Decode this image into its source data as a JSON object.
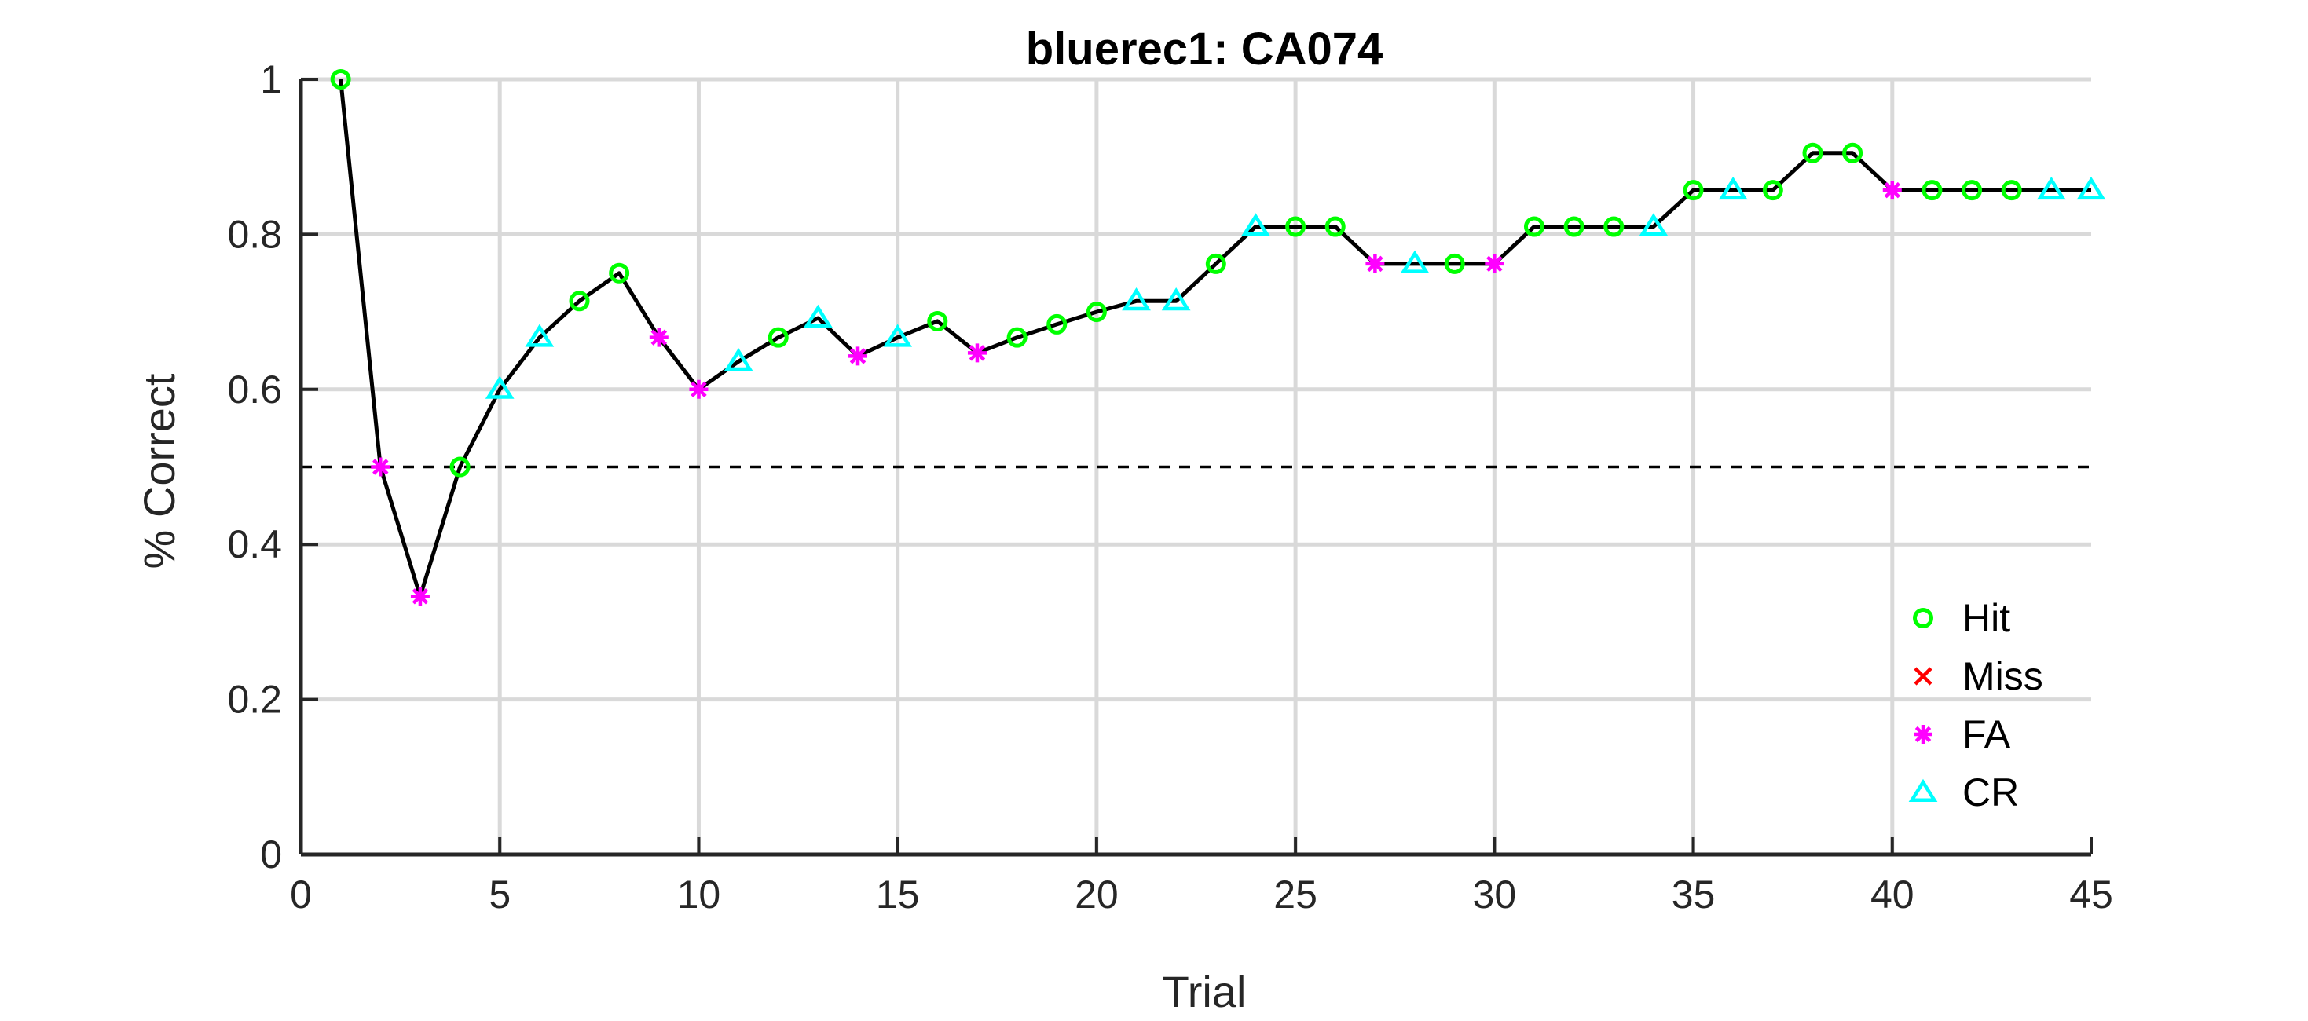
{
  "chart_data": {
    "type": "line",
    "title": "bluerec1: CA074",
    "xlabel": "Trial",
    "ylabel": "% Correct",
    "xlim": [
      0,
      45
    ],
    "ylim": [
      0,
      1
    ],
    "xticks": [
      0,
      5,
      10,
      15,
      20,
      25,
      30,
      35,
      40,
      45
    ],
    "yticks": [
      0,
      0.2,
      0.4,
      0.6,
      0.8,
      1
    ],
    "xtick_labels": [
      "0",
      "5",
      "10",
      "15",
      "20",
      "25",
      "30",
      "35",
      "40",
      "45"
    ],
    "ytick_labels": [
      "0",
      "0.2",
      "0.4",
      "0.6",
      "0.8",
      "1"
    ],
    "grid": true,
    "reference_line": {
      "y": 0.5,
      "style": "dashed"
    },
    "legend_position": "bottom-right",
    "legend": [
      {
        "label": "Hit",
        "marker": "circle",
        "color": "#00ff00"
      },
      {
        "label": "Miss",
        "marker": "x",
        "color": "#ff0000"
      },
      {
        "label": "FA",
        "marker": "asterisk",
        "color": "#ff00ff"
      },
      {
        "label": "CR",
        "marker": "triangle",
        "color": "#00ffff"
      }
    ],
    "line_color": "#000000",
    "points": [
      {
        "x": 1,
        "y": 1.0,
        "type": "Hit"
      },
      {
        "x": 2,
        "y": 0.5,
        "type": "FA"
      },
      {
        "x": 3,
        "y": 0.333,
        "type": "FA"
      },
      {
        "x": 4,
        "y": 0.5,
        "type": "Hit"
      },
      {
        "x": 5,
        "y": 0.6,
        "type": "CR"
      },
      {
        "x": 6,
        "y": 0.667,
        "type": "CR"
      },
      {
        "x": 7,
        "y": 0.714,
        "type": "Hit"
      },
      {
        "x": 8,
        "y": 0.75,
        "type": "Hit"
      },
      {
        "x": 9,
        "y": 0.667,
        "type": "FA"
      },
      {
        "x": 10,
        "y": 0.6,
        "type": "FA"
      },
      {
        "x": 11,
        "y": 0.636,
        "type": "CR"
      },
      {
        "x": 12,
        "y": 0.667,
        "type": "Hit"
      },
      {
        "x": 13,
        "y": 0.692,
        "type": "CR"
      },
      {
        "x": 14,
        "y": 0.643,
        "type": "FA"
      },
      {
        "x": 15,
        "y": 0.667,
        "type": "CR"
      },
      {
        "x": 16,
        "y": 0.688,
        "type": "Hit"
      },
      {
        "x": 17,
        "y": 0.647,
        "type": "FA"
      },
      {
        "x": 18,
        "y": 0.667,
        "type": "Hit"
      },
      {
        "x": 19,
        "y": 0.684,
        "type": "Hit"
      },
      {
        "x": 20,
        "y": 0.7,
        "type": "Hit"
      },
      {
        "x": 21,
        "y": 0.714,
        "type": "CR"
      },
      {
        "x": 22,
        "y": 0.714,
        "type": "CR"
      },
      {
        "x": 23,
        "y": 0.762,
        "type": "Hit"
      },
      {
        "x": 24,
        "y": 0.81,
        "type": "CR"
      },
      {
        "x": 25,
        "y": 0.81,
        "type": "Hit"
      },
      {
        "x": 26,
        "y": 0.81,
        "type": "Hit"
      },
      {
        "x": 27,
        "y": 0.762,
        "type": "FA"
      },
      {
        "x": 28,
        "y": 0.762,
        "type": "CR"
      },
      {
        "x": 29,
        "y": 0.762,
        "type": "Hit"
      },
      {
        "x": 30,
        "y": 0.762,
        "type": "FA"
      },
      {
        "x": 31,
        "y": 0.81,
        "type": "Hit"
      },
      {
        "x": 32,
        "y": 0.81,
        "type": "Hit"
      },
      {
        "x": 33,
        "y": 0.81,
        "type": "Hit"
      },
      {
        "x": 34,
        "y": 0.81,
        "type": "CR"
      },
      {
        "x": 35,
        "y": 0.857,
        "type": "Hit"
      },
      {
        "x": 36,
        "y": 0.857,
        "type": "CR"
      },
      {
        "x": 37,
        "y": 0.857,
        "type": "Hit"
      },
      {
        "x": 38,
        "y": 0.905,
        "type": "Hit"
      },
      {
        "x": 39,
        "y": 0.905,
        "type": "Hit"
      },
      {
        "x": 40,
        "y": 0.857,
        "type": "FA"
      },
      {
        "x": 41,
        "y": 0.857,
        "type": "Hit"
      },
      {
        "x": 42,
        "y": 0.857,
        "type": "Hit"
      },
      {
        "x": 43,
        "y": 0.857,
        "type": "Hit"
      },
      {
        "x": 44,
        "y": 0.857,
        "type": "CR"
      },
      {
        "x": 45,
        "y": 0.857,
        "type": "CR"
      }
    ]
  }
}
